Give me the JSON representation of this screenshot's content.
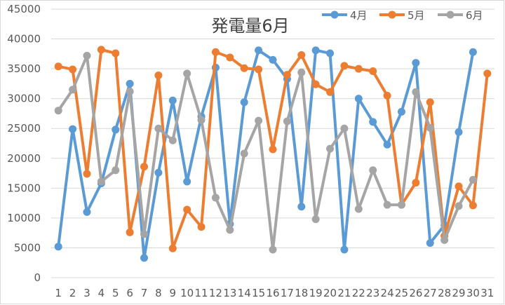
{
  "chart_data": {
    "type": "line",
    "title": "発電量6月",
    "xlabel": "",
    "ylabel": "",
    "ylim": [
      0,
      45000
    ],
    "ytick_step": 5000,
    "grid": true,
    "legend_position": "top-right",
    "categories": [
      "1",
      "2",
      "3",
      "4",
      "5",
      "6",
      "7",
      "8",
      "9",
      "10",
      "11",
      "12",
      "13",
      "14",
      "15",
      "16",
      "17",
      "18",
      "19",
      "20",
      "21",
      "22",
      "23",
      "24",
      "25",
      "26",
      "27",
      "28",
      "29",
      "30",
      "31"
    ],
    "series": [
      {
        "name": "4月",
        "color": "#5b9bd5",
        "values": [
          5200,
          24900,
          11000,
          15800,
          24800,
          32500,
          3300,
          17600,
          29700,
          16100,
          27000,
          35200,
          9000,
          29400,
          38100,
          36500,
          33300,
          11900,
          38100,
          37600,
          4700,
          30000,
          26100,
          22300,
          27800,
          36000,
          5800,
          8800,
          24400,
          37800,
          null
        ]
      },
      {
        "name": "5月",
        "color": "#ed7d31",
        "values": [
          35400,
          34900,
          17400,
          38200,
          37600,
          7600,
          18600,
          33900,
          4900,
          11400,
          8500,
          37800,
          36900,
          35100,
          34900,
          21500,
          34000,
          37300,
          32400,
          31100,
          35500,
          35000,
          34600,
          30500,
          12200,
          15900,
          29400,
          7000,
          15300,
          12100,
          34200
        ]
      },
      {
        "name": "6月",
        "color": "#a5a5a5",
        "values": [
          28000,
          31500,
          37200,
          16100,
          18000,
          31200,
          7300,
          25000,
          23000,
          34200,
          26400,
          13400,
          8000,
          20800,
          26300,
          4700,
          26200,
          34400,
          9800,
          21600,
          25000,
          11500,
          18000,
          12200,
          12200,
          31100,
          25100,
          6300,
          12000,
          16400,
          null
        ]
      }
    ]
  }
}
